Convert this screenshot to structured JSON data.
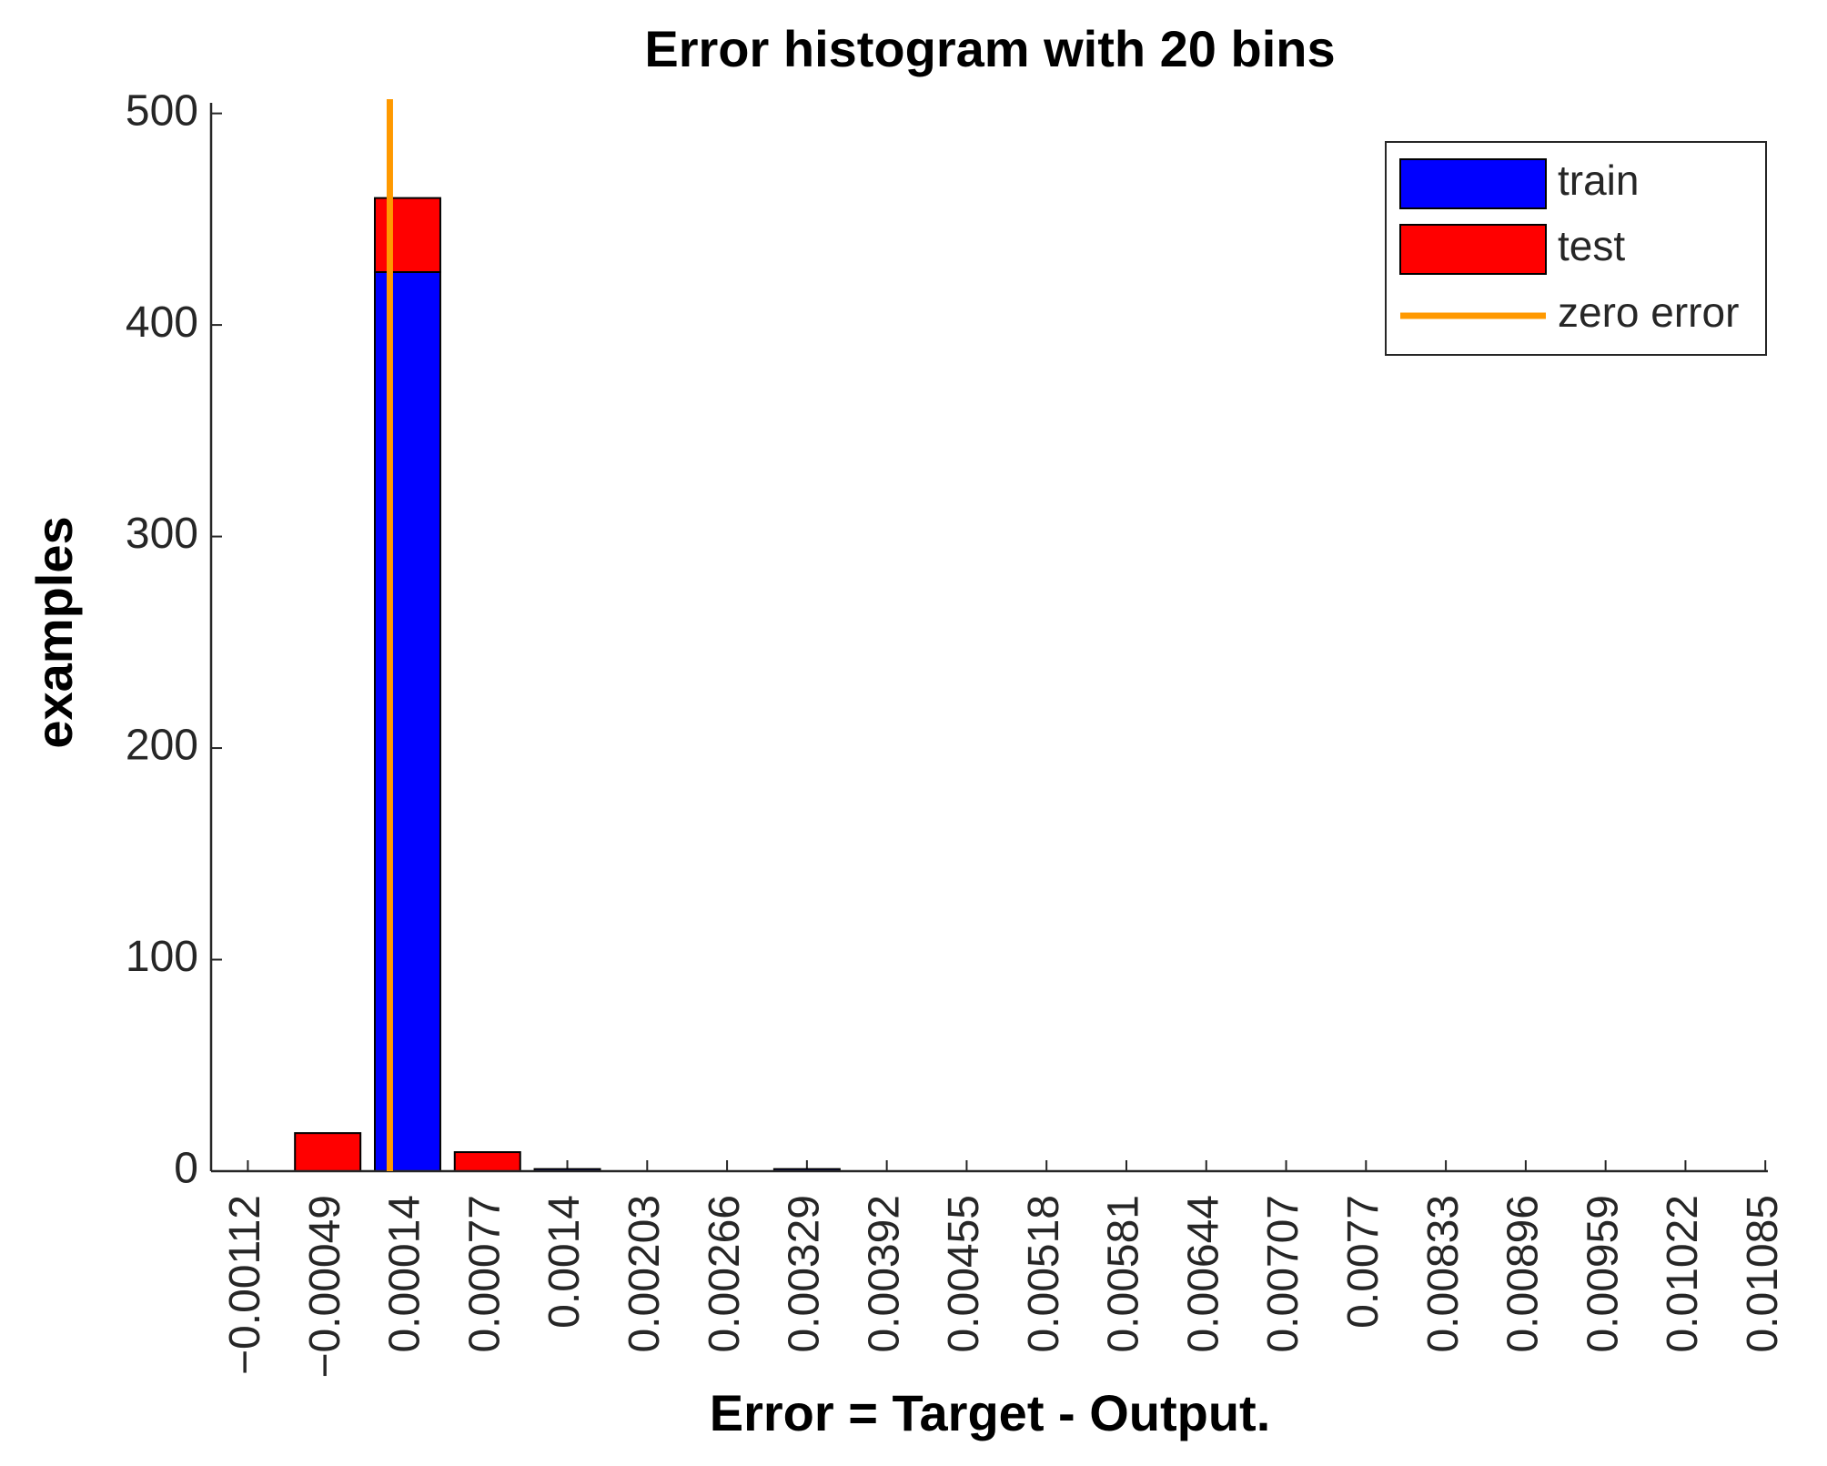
{
  "chart_data": {
    "type": "histogram",
    "title": "Error histogram with 20 bins",
    "x_label": "Error = Target - Output.",
    "y_label": "examples",
    "x": [
      -0.00112,
      -0.00049,
      0.00014,
      0.00077,
      0.0014,
      0.00203,
      0.00266,
      0.00329,
      0.00392,
      0.00455,
      0.00518,
      0.00581,
      0.00644,
      0.00707,
      0.0077,
      0.00833,
      0.00896,
      0.00959,
      0.01022,
      0.01085
    ],
    "series": [
      {
        "name": "train",
        "color": "#0000ff",
        "values": [
          0,
          0,
          425,
          0,
          1,
          0,
          0,
          1,
          0,
          0,
          0,
          0,
          0,
          0,
          0,
          0,
          0,
          0,
          0,
          0
        ]
      },
      {
        "name": "test",
        "color": "#ff0000",
        "values": [
          0,
          18,
          35,
          9,
          0,
          0,
          0,
          0,
          0,
          0,
          0,
          0,
          0,
          0,
          0,
          0,
          0,
          0,
          0,
          0
        ]
      }
    ],
    "reference_line": {
      "name": "zero error",
      "color": "#ff9900",
      "x": 0
    },
    "xlim": [
      -0.00141,
      0.01087
    ],
    "xticks": [
      {
        "value": -0.00112,
        "label": "−0.00112"
      },
      {
        "value": -0.00049,
        "label": "−0.00049"
      },
      0.00014,
      0.00077,
      0.0014,
      0.00203,
      0.00266,
      0.00329,
      0.00392,
      0.00455,
      0.00518,
      0.00581,
      0.00644,
      0.00707,
      0.0077,
      0.00833,
      0.00896,
      0.00959,
      0.01022,
      0.01085
    ],
    "ylim": [
      0,
      505
    ],
    "yticks": [
      0,
      100,
      200,
      300,
      400,
      500
    ],
    "legend": "top-right"
  }
}
